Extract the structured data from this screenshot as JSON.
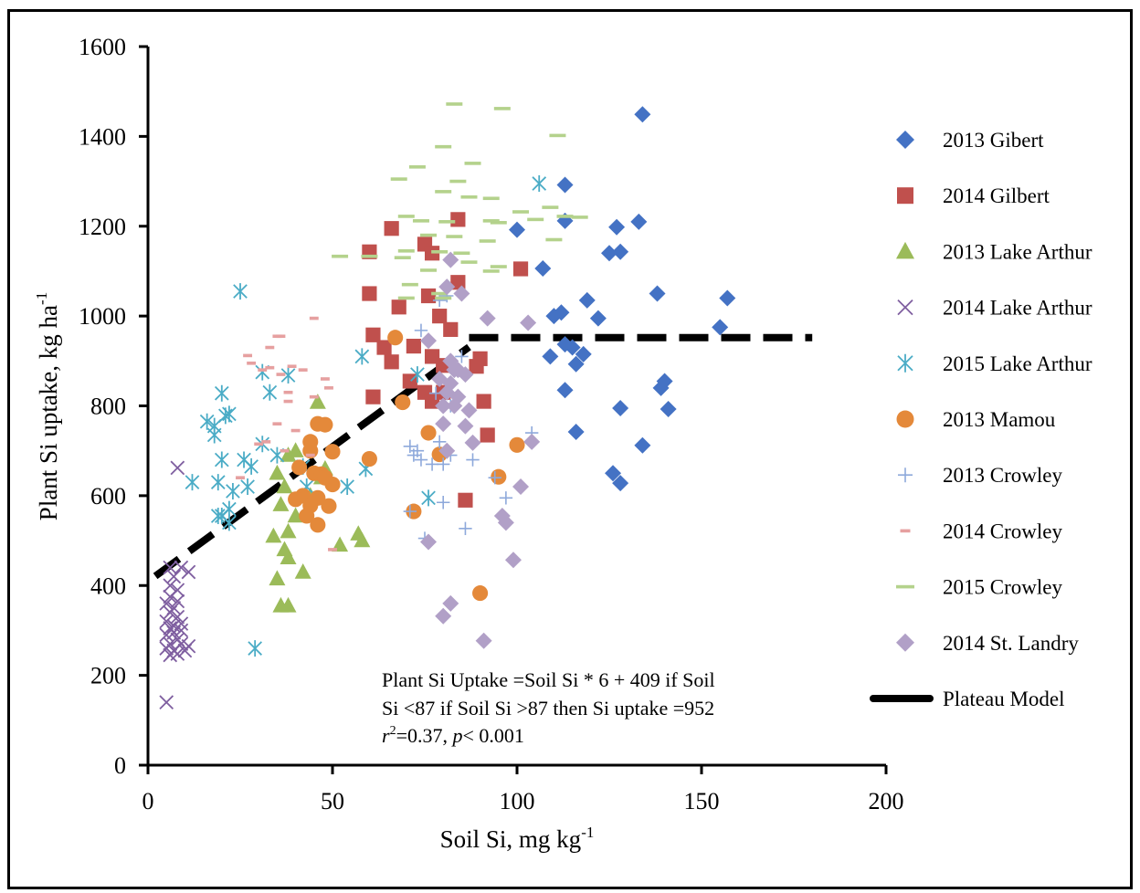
{
  "chart_data": {
    "type": "scatter",
    "title": "",
    "xlabel": "Soil Si, mg kg",
    "xlabel_sup": "-1",
    "ylabel": "Plant Si uptake, kg ha",
    "ylabel_sup": "-1",
    "xlim": [
      0,
      200
    ],
    "ylim": [
      0,
      1600
    ],
    "x_ticks": [
      0,
      50,
      100,
      150,
      200
    ],
    "y_ticks": [
      0,
      200,
      400,
      600,
      800,
      1000,
      1200,
      1400,
      1600
    ],
    "grid": false,
    "legend_position": "right",
    "annotation": {
      "line1": "Plant Si Uptake =Soil Si * 6 + 409 if Soil",
      "line2": "Si <87 if Soil Si >87 then Si uptake =952",
      "r_sym": "r",
      "r_sup": "2",
      "r_val": "=0.37,  ",
      "p_sym": "p",
      "p_val": "< 0.001"
    },
    "series": [
      {
        "name": "2013 Gibert",
        "marker": "diamond",
        "color": "#4472C4",
        "points": [
          [
            134,
            1449
          ],
          [
            113,
            1292
          ],
          [
            133,
            1210
          ],
          [
            127,
            1198
          ],
          [
            113,
            1212
          ],
          [
            128,
            1143
          ],
          [
            125,
            1140
          ],
          [
            100,
            1192
          ],
          [
            107,
            1106
          ],
          [
            119,
            1035
          ],
          [
            138,
            1050
          ],
          [
            122,
            995
          ],
          [
            157,
            1040
          ],
          [
            155,
            975
          ],
          [
            110,
            1000
          ],
          [
            112,
            1008
          ],
          [
            113,
            937
          ],
          [
            115,
            930
          ],
          [
            118,
            915
          ],
          [
            109,
            910
          ],
          [
            116,
            893
          ],
          [
            140,
            855
          ],
          [
            139,
            840
          ],
          [
            113,
            835
          ],
          [
            141,
            793
          ],
          [
            128,
            795
          ],
          [
            116,
            742
          ],
          [
            134,
            712
          ],
          [
            126,
            650
          ],
          [
            128,
            628
          ]
        ]
      },
      {
        "name": "2014 Gilbert",
        "marker": "square",
        "color": "#C0504D",
        "points": [
          [
            66,
            1195
          ],
          [
            84,
            1215
          ],
          [
            60,
            1143
          ],
          [
            75,
            1160
          ],
          [
            77,
            1140
          ],
          [
            101,
            1105
          ],
          [
            84,
            1075
          ],
          [
            60,
            1050
          ],
          [
            76,
            1045
          ],
          [
            68,
            1020
          ],
          [
            79,
            1000
          ],
          [
            82,
            970
          ],
          [
            61,
            958
          ],
          [
            64,
            930
          ],
          [
            72,
            933
          ],
          [
            66,
            898
          ],
          [
            80,
            890
          ],
          [
            90,
            905
          ],
          [
            89,
            888
          ],
          [
            77,
            910
          ],
          [
            71,
            855
          ],
          [
            80,
            830
          ],
          [
            75,
            830
          ],
          [
            77,
            810
          ],
          [
            91,
            810
          ],
          [
            61,
            820
          ],
          [
            92,
            735
          ],
          [
            86,
            590
          ]
        ]
      },
      {
        "name": "2013 Lake Arthur",
        "marker": "triangle",
        "color": "#9BBB59",
        "points": [
          [
            46,
            808
          ],
          [
            38,
            690
          ],
          [
            35,
            650
          ],
          [
            37,
            620
          ],
          [
            36,
            580
          ],
          [
            40,
            555
          ],
          [
            38,
            520
          ],
          [
            34,
            510
          ],
          [
            37,
            480
          ],
          [
            38,
            462
          ],
          [
            42,
            430
          ],
          [
            35,
            415
          ],
          [
            36,
            355
          ],
          [
            38,
            355
          ],
          [
            52,
            490
          ],
          [
            57,
            515
          ],
          [
            58,
            500
          ],
          [
            44,
            600
          ],
          [
            47,
            640
          ],
          [
            40,
            700
          ],
          [
            48,
            660
          ]
        ]
      },
      {
        "name": "2014 Lake Arthur",
        "marker": "x",
        "color": "#7F5FA0",
        "points": [
          [
            8,
            662
          ],
          [
            5,
            140
          ],
          [
            6,
            440
          ],
          [
            9,
            440
          ],
          [
            11,
            430
          ],
          [
            7,
            420
          ],
          [
            6,
            400
          ],
          [
            8,
            390
          ],
          [
            6,
            375
          ],
          [
            8,
            365
          ],
          [
            5,
            360
          ],
          [
            7,
            350
          ],
          [
            6,
            340
          ],
          [
            8,
            330
          ],
          [
            5,
            320
          ],
          [
            9,
            315
          ],
          [
            6,
            305
          ],
          [
            7,
            295
          ],
          [
            5,
            290
          ],
          [
            8,
            280
          ],
          [
            6,
            270
          ],
          [
            9,
            270
          ],
          [
            11,
            265
          ],
          [
            5,
            260
          ],
          [
            7,
            255
          ],
          [
            8,
            248
          ],
          [
            6,
            245
          ],
          [
            10,
            255
          ],
          [
            7,
            310
          ],
          [
            9,
            300
          ]
        ]
      },
      {
        "name": "2015 Lake Arthur",
        "marker": "asterisk",
        "color": "#4BACC6",
        "points": [
          [
            106,
            1295
          ],
          [
            25,
            1055
          ],
          [
            16,
            765
          ],
          [
            18,
            755
          ],
          [
            20,
            828
          ],
          [
            22,
            782
          ],
          [
            21,
            778
          ],
          [
            31,
            875
          ],
          [
            33,
            830
          ],
          [
            38,
            868
          ],
          [
            58,
            910
          ],
          [
            18,
            735
          ],
          [
            20,
            680
          ],
          [
            12,
            630
          ],
          [
            19,
            630
          ],
          [
            26,
            680
          ],
          [
            28,
            665
          ],
          [
            23,
            610
          ],
          [
            22,
            570
          ],
          [
            20,
            555
          ],
          [
            22,
            540
          ],
          [
            19,
            555
          ],
          [
            27,
            620
          ],
          [
            35,
            690
          ],
          [
            43,
            620
          ],
          [
            54,
            620
          ],
          [
            59,
            660
          ],
          [
            73,
            870
          ],
          [
            76,
            595
          ],
          [
            29,
            260
          ],
          [
            31,
            715
          ],
          [
            42,
            665
          ]
        ]
      },
      {
        "name": "2013 Mamou",
        "marker": "circle",
        "color": "#E4893A",
        "points": [
          [
            67,
            952
          ],
          [
            69,
            808
          ],
          [
            46,
            760
          ],
          [
            48,
            758
          ],
          [
            44,
            720
          ],
          [
            44,
            700
          ],
          [
            50,
            698
          ],
          [
            41,
            663
          ],
          [
            60,
            682
          ],
          [
            45,
            650
          ],
          [
            47,
            648
          ],
          [
            48,
            640
          ],
          [
            50,
            625
          ],
          [
            42,
            600
          ],
          [
            46,
            595
          ],
          [
            40,
            592
          ],
          [
            44,
            578
          ],
          [
            49,
            577
          ],
          [
            43,
            555
          ],
          [
            46,
            535
          ],
          [
            72,
            565
          ],
          [
            76,
            740
          ],
          [
            79,
            692
          ],
          [
            95,
            642
          ],
          [
            100,
            713
          ],
          [
            90,
            383
          ]
        ]
      },
      {
        "name": "2013 Crowley",
        "marker": "plus",
        "color": "#8EA9DB",
        "points": [
          [
            74,
            968
          ],
          [
            79,
            1035
          ],
          [
            81,
            1045
          ],
          [
            85,
            910
          ],
          [
            78,
            828
          ],
          [
            82,
            800
          ],
          [
            71,
            710
          ],
          [
            73,
            700
          ],
          [
            72,
            690
          ],
          [
            74,
            680
          ],
          [
            77,
            670
          ],
          [
            80,
            670
          ],
          [
            82,
            690
          ],
          [
            88,
            680
          ],
          [
            94,
            640
          ],
          [
            97,
            595
          ],
          [
            71,
            565
          ],
          [
            75,
            505
          ],
          [
            80,
            585
          ],
          [
            86,
            527
          ],
          [
            104,
            740
          ],
          [
            79,
            720
          ]
        ]
      },
      {
        "name": "2014 Crowley",
        "marker": "dash",
        "color": "#E6A0A0",
        "points": [
          [
            35,
            955
          ],
          [
            45,
            995
          ],
          [
            39,
            888
          ],
          [
            42,
            880
          ],
          [
            48,
            860
          ],
          [
            33,
            885
          ],
          [
            36,
            870
          ],
          [
            28,
            895
          ],
          [
            31,
            880
          ],
          [
            27,
            912
          ],
          [
            33,
            930
          ],
          [
            36,
            955
          ],
          [
            45,
            820
          ],
          [
            49,
            840
          ],
          [
            38,
            830
          ],
          [
            35,
            760
          ],
          [
            40,
            745
          ],
          [
            32,
            720
          ],
          [
            30,
            715
          ],
          [
            25,
            640
          ],
          [
            37,
            700
          ],
          [
            44,
            690
          ],
          [
            38,
            810
          ],
          [
            50,
            480
          ]
        ]
      },
      {
        "name": "2015 Crowley",
        "marker": "hline",
        "color": "#B4D28C",
        "points": [
          [
            83,
            1472
          ],
          [
            96,
            1462
          ],
          [
            111,
            1402
          ],
          [
            73,
            1332
          ],
          [
            80,
            1377
          ],
          [
            88,
            1340
          ],
          [
            68,
            1305
          ],
          [
            84,
            1300
          ],
          [
            80,
            1277
          ],
          [
            87,
            1265
          ],
          [
            93,
            1262
          ],
          [
            101,
            1232
          ],
          [
            109,
            1242
          ],
          [
            113,
            1222
          ],
          [
            117,
            1220
          ],
          [
            70,
            1222
          ],
          [
            74,
            1212
          ],
          [
            81,
            1210
          ],
          [
            95,
            1208
          ],
          [
            93,
            1212
          ],
          [
            105,
            1215
          ],
          [
            76,
            1180
          ],
          [
            83,
            1177
          ],
          [
            92,
            1167
          ],
          [
            110,
            1170
          ],
          [
            70,
            1145
          ],
          [
            79,
            1143
          ],
          [
            85,
            1140
          ],
          [
            52,
            1133
          ],
          [
            60,
            1133
          ],
          [
            69,
            1130
          ],
          [
            87,
            1120
          ],
          [
            93,
            1100
          ],
          [
            95,
            1110
          ],
          [
            76,
            1102
          ],
          [
            71,
            1070
          ],
          [
            79,
            1050
          ],
          [
            70,
            1040
          ],
          [
            80,
            1040
          ]
        ]
      },
      {
        "name": "2014 St. Landry",
        "marker": "diamond",
        "color": "#B1A0C7",
        "points": [
          [
            82,
            1125
          ],
          [
            81,
            1065
          ],
          [
            85,
            1050
          ],
          [
            92,
            995
          ],
          [
            103,
            985
          ],
          [
            76,
            945
          ],
          [
            82,
            900
          ],
          [
            84,
            880
          ],
          [
            86,
            870
          ],
          [
            79,
            860
          ],
          [
            82,
            850
          ],
          [
            81,
            830
          ],
          [
            84,
            820
          ],
          [
            83,
            800
          ],
          [
            87,
            790
          ],
          [
            80,
            800
          ],
          [
            80,
            760
          ],
          [
            86,
            755
          ],
          [
            104,
            720
          ],
          [
            88,
            718
          ],
          [
            81,
            700
          ],
          [
            96,
            555
          ],
          [
            97,
            540
          ],
          [
            101,
            620
          ],
          [
            99,
            457
          ],
          [
            76,
            497
          ],
          [
            82,
            360
          ],
          [
            80,
            332
          ],
          [
            91,
            277
          ],
          [
            83,
            880
          ]
        ]
      }
    ],
    "model": {
      "name": "Plateau Model",
      "color": "#000000",
      "slope": 6,
      "intercept": 409,
      "breakpoint": 87,
      "plateau": 952,
      "x_start": 2,
      "x_end": 180
    }
  }
}
